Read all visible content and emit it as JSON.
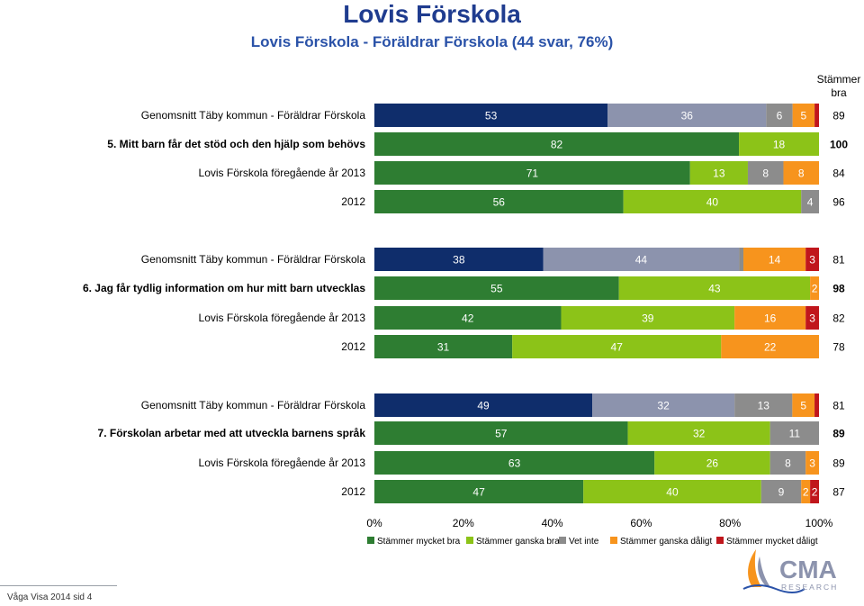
{
  "header": {
    "title": "Lovis Förskola",
    "subtitle": "Lovis Förskola - Föräldrar Förskola (44 svar,  76%)"
  },
  "right_header": [
    "Stämmer",
    "bra"
  ],
  "footer": {
    "text": "Våga Visa 2014 sid 4"
  },
  "logo": {
    "text": "CMA",
    "subtext": "RESEARCH"
  },
  "colors": {
    "mycket_bra": "#2e7d32",
    "ganska_bra": "#8cc318",
    "vet_inte": "#8c8c8c",
    "ganska_daligt": "#f7941d",
    "mycket_daligt": "#c0161c",
    "genomsnitt_mycket_bra": "#0f2d6b",
    "genomsnitt_ganska_bra": "#8c93ad"
  },
  "chart_data": {
    "type": "bar",
    "orientation": "horizontal-stacked-percent",
    "xlim": [
      0,
      100
    ],
    "xticks": [
      "0%",
      "20%",
      "40%",
      "60%",
      "80%",
      "100%"
    ],
    "legend_position": "bottom",
    "series_names": [
      "Stämmer mycket bra",
      "Stämmer ganska bra",
      "Vet inte",
      "Stämmer ganska dåligt",
      "Stämmer mycket dåligt"
    ],
    "groups": [
      {
        "question": "5. Mitt barn får det stöd och den hjälp som behövs",
        "rows": [
          {
            "label": "Genomsnitt Täby kommun - Föräldrar Förskola",
            "values": [
              53,
              36,
              6,
              5,
              1
            ],
            "total": "89",
            "total_bold": false,
            "average": true
          },
          {
            "label": "5. Mitt barn får det stöd och den hjälp som behövs",
            "values": [
              82,
              18,
              0,
              0,
              0
            ],
            "total": "100",
            "total_bold": true,
            "bold_label": true,
            "visible": [
              "82",
              "18",
              "",
              "0",
              ""
            ]
          },
          {
            "label": "Lovis Förskola föregående år 2013",
            "values": [
              71,
              13,
              8,
              8,
              0
            ],
            "total": "84",
            "total_bold": false,
            "visible": [
              "71",
              "13",
              "8",
              "8",
              "0"
            ]
          },
          {
            "label": "2012",
            "values": [
              56,
              40,
              4,
              0,
              0
            ],
            "total": "96",
            "total_bold": false,
            "visible": [
              "56",
              "40",
              "4",
              "0",
              ""
            ]
          }
        ]
      },
      {
        "question": "6. Jag får tydlig information om hur mitt barn utvecklas",
        "rows": [
          {
            "label": "Genomsnitt Täby kommun - Föräldrar Förskola",
            "values": [
              38,
              44,
              1,
              14,
              3
            ],
            "total": "81",
            "total_bold": false,
            "average": true
          },
          {
            "label": "6. Jag får tydlig information om hur mitt barn utvecklas",
            "values": [
              55,
              43,
              0,
              2,
              0
            ],
            "total": "98",
            "total_bold": true,
            "bold_label": true,
            "visible": [
              "55",
              "43",
              "0",
              "2",
              "0"
            ]
          },
          {
            "label": "Lovis Förskola föregående år 2013",
            "values": [
              42,
              39,
              0,
              16,
              3
            ],
            "total": "82",
            "total_bold": false
          },
          {
            "label": "2012",
            "values": [
              31,
              47,
              0,
              22,
              0
            ],
            "total": "78",
            "total_bold": false
          }
        ]
      },
      {
        "question": "7. Förskolan arbetar med att utveckla barnens språk",
        "rows": [
          {
            "label": "Genomsnitt Täby kommun - Föräldrar Förskola",
            "values": [
              49,
              32,
              13,
              5,
              1
            ],
            "total": "81",
            "total_bold": false,
            "average": true
          },
          {
            "label": "7. Förskolan arbetar med att utveckla barnens språk",
            "values": [
              57,
              32,
              11,
              0,
              0
            ],
            "total": "89",
            "total_bold": true,
            "bold_label": true,
            "visible": [
              "57",
              "32",
              "11",
              "0",
              ""
            ]
          },
          {
            "label": "Lovis Förskola föregående år 2013",
            "values": [
              63,
              26,
              8,
              3,
              0
            ],
            "total": "89",
            "total_bold": false,
            "visible": [
              "63",
              "26",
              "8",
              "3",
              "0"
            ]
          },
          {
            "label": "2012",
            "values": [
              47,
              40,
              9,
              2,
              2
            ],
            "total": "87",
            "total_bold": false
          }
        ]
      }
    ]
  }
}
